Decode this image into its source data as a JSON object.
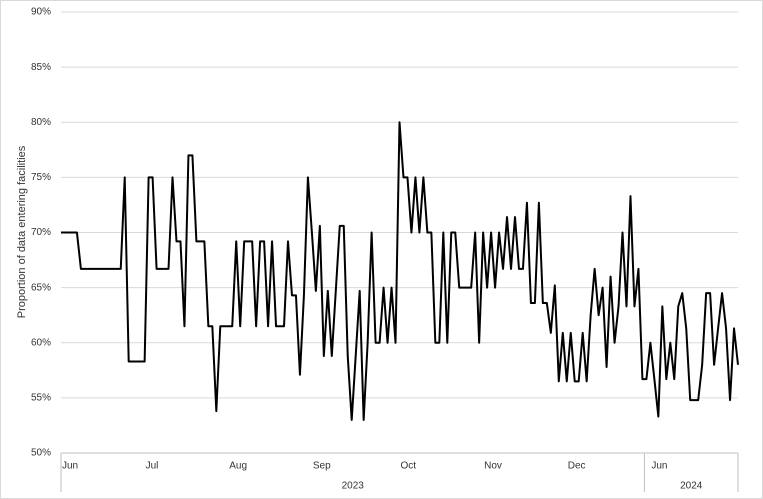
{
  "chart_data": {
    "type": "line",
    "y_label": "Proportion of data entering facilities",
    "categories": [
      "Jun",
      null,
      null,
      null,
      null,
      null,
      null,
      null,
      null,
      null,
      null,
      null,
      null,
      null,
      null,
      null,
      null,
      null,
      null,
      null,
      null,
      "Jul",
      null,
      null,
      null,
      null,
      null,
      null,
      null,
      null,
      null,
      null,
      null,
      null,
      null,
      null,
      null,
      null,
      null,
      null,
      null,
      null,
      "Aug",
      null,
      null,
      null,
      null,
      null,
      null,
      null,
      null,
      null,
      null,
      null,
      null,
      null,
      null,
      null,
      null,
      null,
      null,
      null,
      null,
      "Sep",
      null,
      null,
      null,
      null,
      null,
      null,
      null,
      null,
      null,
      null,
      null,
      null,
      null,
      null,
      null,
      null,
      null,
      null,
      null,
      null,
      null,
      "Oct",
      null,
      null,
      null,
      null,
      null,
      null,
      null,
      null,
      null,
      null,
      null,
      null,
      null,
      null,
      null,
      null,
      null,
      null,
      null,
      null,
      "Nov",
      null,
      null,
      null,
      null,
      null,
      null,
      null,
      null,
      null,
      null,
      null,
      null,
      null,
      null,
      null,
      null,
      null,
      null,
      null,
      null,
      "Dec",
      null,
      null,
      null,
      null,
      null,
      null,
      null,
      null,
      null,
      null,
      null,
      null,
      null,
      null,
      null,
      null,
      null,
      null,
      null,
      null,
      "Jun",
      null,
      null,
      null,
      null,
      null,
      null,
      null,
      null,
      null,
      null,
      null,
      null,
      null,
      null,
      null,
      null,
      null,
      null,
      null,
      null,
      null,
      null
    ],
    "x_groups": [
      {
        "label": "2023"
      },
      {
        "label": "2024"
      }
    ],
    "values": [
      70,
      70,
      70,
      70,
      70,
      66.7,
      66.7,
      66.7,
      66.7,
      66.7,
      66.7,
      66.7,
      66.7,
      66.7,
      66.7,
      66.7,
      75,
      58.3,
      58.3,
      58.3,
      58.3,
      58.3,
      75,
      75,
      66.7,
      66.7,
      66.7,
      66.7,
      75,
      69.2,
      69.2,
      61.5,
      77,
      77,
      69.2,
      69.2,
      69.2,
      61.5,
      61.5,
      53.8,
      61.5,
      61.5,
      61.5,
      61.5,
      69.2,
      61.5,
      69.2,
      69.2,
      69.2,
      61.5,
      69.2,
      69.2,
      61.5,
      69.2,
      61.5,
      61.5,
      61.5,
      69.2,
      64.3,
      64.3,
      57.1,
      64.3,
      75,
      70,
      64.7,
      70.6,
      58.8,
      64.7,
      58.8,
      64.7,
      70.6,
      70.6,
      58.8,
      53,
      58.8,
      64.7,
      53,
      60,
      70,
      60,
      60,
      65,
      60,
      65,
      60,
      80,
      75,
      75,
      70,
      75,
      70,
      75,
      70,
      70,
      60,
      60,
      70,
      60,
      70,
      70,
      65,
      65,
      65,
      65,
      70,
      60,
      70,
      65,
      70,
      65,
      70,
      66.7,
      71.4,
      66.7,
      71.4,
      66.7,
      66.7,
      72.7,
      63.6,
      63.6,
      72.7,
      63.6,
      63.6,
      60.9,
      65.2,
      56.5,
      60.9,
      56.5,
      60.9,
      56.5,
      56.5,
      60.9,
      56.5,
      62.5,
      66.7,
      62.5,
      65,
      57.8,
      66,
      60,
      63.3,
      70,
      63.3,
      73.3,
      63.3,
      66.7,
      56.7,
      56.7,
      60,
      56.7,
      53.3,
      63.3,
      56.7,
      60,
      56.7,
      63.3,
      64.5,
      61.3,
      54.8,
      54.8,
      54.8,
      58,
      64.5,
      64.5,
      58,
      61.3,
      64.5,
      61.3,
      54.8,
      61.3,
      58
    ],
    "color": "#000000",
    "ylim": [
      50,
      90
    ],
    "yticks": [
      {
        "value": 50,
        "label": "50%"
      },
      {
        "value": 55,
        "label": "55%"
      },
      {
        "value": 60,
        "label": "60%"
      },
      {
        "value": 65,
        "label": "65%"
      },
      {
        "value": 70,
        "label": "70%"
      },
      {
        "value": 75,
        "label": "75%"
      },
      {
        "value": 80,
        "label": "80%"
      },
      {
        "value": 85,
        "label": "85%"
      },
      {
        "value": 90,
        "label": "90%"
      }
    ],
    "grid": true
  }
}
